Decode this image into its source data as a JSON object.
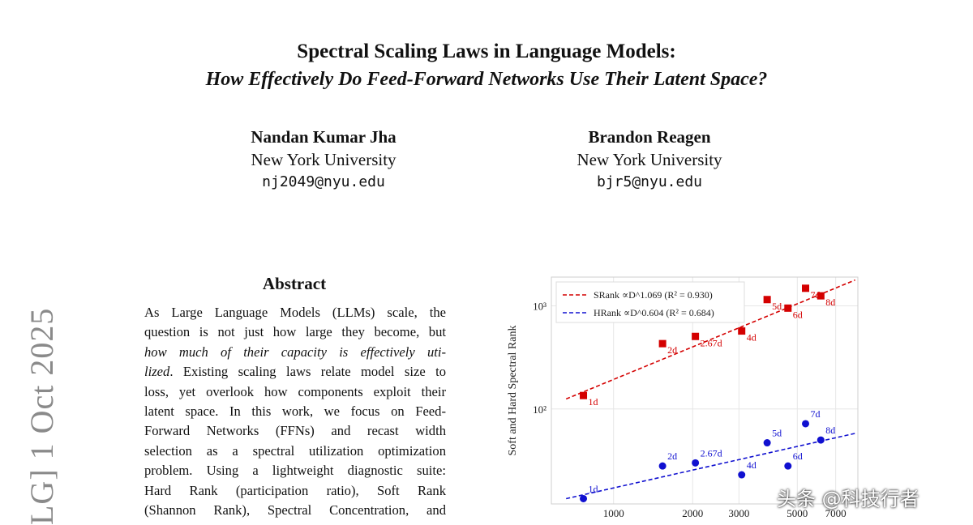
{
  "paper": {
    "title_line1": "Spectral Scaling Laws in Language Models:",
    "title_line2": "How Effectively Do Feed-Forward Networks Use Their Latent Space?",
    "authors": [
      {
        "name": "Nandan Kumar Jha",
        "affiliation": "New York University",
        "email": "nj2049@nyu.edu"
      },
      {
        "name": "Brandon Reagen",
        "affiliation": "New York University",
        "email": "bjr5@nyu.edu"
      }
    ],
    "arxiv_stamp": "LG]  1 Oct 2025",
    "abstract_heading": "Abstract",
    "abstract_lines": [
      "As Large Language Models (LLMs) scale, the",
      "question is not just how large they become, but",
      "how much of their capacity is effectively uti-",
      "lized",
      ". Existing scaling laws relate model size to",
      "loss, yet overlook how components exploit their",
      "latent space. In this work, we focus on Feed-",
      "Forward Networks (FFNs) and recast width",
      "selection as a spectral utilization optimization",
      "problem. Using a lightweight diagnostic suite:",
      "Hard Rank (participation ratio), Soft Rank",
      "(Shannon Rank), Spectral Concentration, and"
    ]
  },
  "watermark": "头条 @科技行者",
  "colors": {
    "srank": "#d40000",
    "hrank": "#1010d0"
  },
  "chart_data": {
    "type": "scatter",
    "xscale": "log",
    "yscale": "log",
    "xlim": [
      580,
      8500
    ],
    "ylim": [
      12,
      1900
    ],
    "ylabel": "Soft and Hard Spectral Rank",
    "xticks": [
      1000,
      2000,
      3000,
      5000,
      7000
    ],
    "xtick_labels": [
      "1000",
      "2000",
      "3000",
      "5000",
      "7000"
    ],
    "yticks": [
      100,
      1000
    ],
    "ytick_labels": [
      "10²",
      "10³"
    ],
    "legend_position": "top-left",
    "series": [
      {
        "name": "SRank",
        "legend_label": "SRank ∝D^1.069 (R² = 0.930)",
        "marker": "square",
        "points": [
          {
            "x": 768,
            "y": 135,
            "label": "1d"
          },
          {
            "x": 1536,
            "y": 430,
            "label": "2d"
          },
          {
            "x": 2048,
            "y": 505,
            "label": "2.67d"
          },
          {
            "x": 3072,
            "y": 570,
            "label": "4d"
          },
          {
            "x": 3840,
            "y": 1150,
            "label": "5d"
          },
          {
            "x": 4608,
            "y": 950,
            "label": "6d"
          },
          {
            "x": 5376,
            "y": 1480,
            "label": "7d"
          },
          {
            "x": 6144,
            "y": 1250,
            "label": "8d"
          }
        ],
        "fit": [
          [
            660,
            125
          ],
          [
            8300,
            1780
          ]
        ]
      },
      {
        "name": "HRank",
        "legend_label": "HRank ∝D^0.604 (R² = 0.684)",
        "marker": "circle",
        "points": [
          {
            "x": 768,
            "y": 13.5,
            "label": "1d"
          },
          {
            "x": 1536,
            "y": 28,
            "label": "2d"
          },
          {
            "x": 2048,
            "y": 30,
            "label": "2.67d"
          },
          {
            "x": 3072,
            "y": 23,
            "label": "4d"
          },
          {
            "x": 3840,
            "y": 47,
            "label": "5d"
          },
          {
            "x": 4608,
            "y": 28,
            "label": "6d"
          },
          {
            "x": 5376,
            "y": 72,
            "label": "7d"
          },
          {
            "x": 6144,
            "y": 50,
            "label": "8d"
          }
        ],
        "fit": [
          [
            660,
            13.5
          ],
          [
            8300,
            58
          ]
        ]
      }
    ]
  }
}
